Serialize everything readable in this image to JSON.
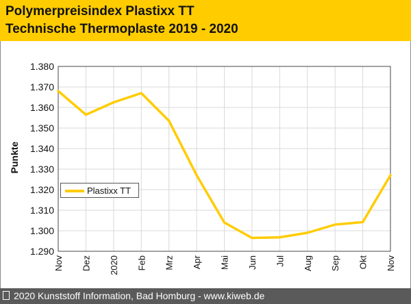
{
  "header": {
    "title": "Polymerpreisindex Plastixx TT",
    "subtitle": "Technische Thermoplaste 2019 - 2020"
  },
  "footer": {
    "text": "2020 Kunststoff Information, Bad Homburg - www.kiweb.de"
  },
  "colors": {
    "accent": "#ffcc00",
    "footer_bg": "#5a5a5a",
    "grid": "#d9d9d9"
  },
  "chart_data": {
    "type": "line",
    "title": "Polymerpreisindex Plastixx TT",
    "subtitle": "Technische Thermoplaste 2019 - 2020",
    "ylabel": "Punkte",
    "xlabel": "",
    "categories": [
      "Nov",
      "Dez",
      "2020",
      "Feb",
      "Mrz",
      "Apr",
      "Mai",
      "Jun",
      "Jul",
      "Aug",
      "Sep",
      "Okt",
      "Nov"
    ],
    "ylim": [
      1290,
      1380
    ],
    "yticks": [
      "1.290",
      "1.300",
      "1.310",
      "1.320",
      "1.330",
      "1.340",
      "1.350",
      "1.360",
      "1.370",
      "1.380"
    ],
    "grid": true,
    "legend_position": "left",
    "series": [
      {
        "name": "Plastixx TT",
        "color": "#ffcc00",
        "values": [
          1368,
          1356.5,
          1362.5,
          1367,
          1353.5,
          1327,
          1304,
          1296.5,
          1296.8,
          1299,
          1303,
          1304.2,
          1327
        ]
      }
    ]
  }
}
